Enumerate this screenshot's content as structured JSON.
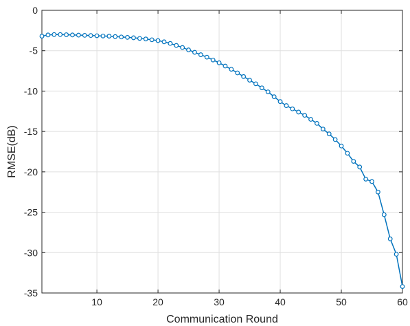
{
  "chart_data": {
    "type": "line",
    "title": "",
    "xlabel": "Communication Round",
    "ylabel": "RMSE(dB)",
    "xlim": [
      1,
      60
    ],
    "ylim": [
      -35,
      0
    ],
    "xticks": [
      10,
      20,
      30,
      40,
      50,
      60
    ],
    "yticks": [
      0,
      -5,
      -10,
      -15,
      -20,
      -25,
      -30,
      -35
    ],
    "grid": true,
    "legend": "none",
    "series": [
      {
        "color": "#0072BD",
        "marker": "circle-open",
        "x": [
          1,
          2,
          3,
          4,
          5,
          6,
          7,
          8,
          9,
          10,
          11,
          12,
          13,
          14,
          15,
          16,
          17,
          18,
          19,
          20,
          21,
          22,
          23,
          24,
          25,
          26,
          27,
          28,
          29,
          30,
          31,
          32,
          33,
          34,
          35,
          36,
          37,
          38,
          39,
          40,
          41,
          42,
          43,
          44,
          45,
          46,
          47,
          48,
          49,
          50,
          51,
          52,
          53,
          54,
          55,
          56,
          57,
          58,
          59,
          60
        ],
        "y": [
          -3.2,
          -3.05,
          -3.0,
          -3.0,
          -3.02,
          -3.05,
          -3.07,
          -3.1,
          -3.12,
          -3.15,
          -3.18,
          -3.2,
          -3.25,
          -3.3,
          -3.35,
          -3.4,
          -3.48,
          -3.55,
          -3.65,
          -3.75,
          -3.9,
          -4.1,
          -4.35,
          -4.6,
          -4.9,
          -5.2,
          -5.5,
          -5.8,
          -6.15,
          -6.5,
          -6.9,
          -7.3,
          -7.75,
          -8.2,
          -8.65,
          -9.1,
          -9.6,
          -10.1,
          -10.7,
          -11.3,
          -11.8,
          -12.2,
          -12.6,
          -13.0,
          -13.5,
          -14.0,
          -14.7,
          -15.3,
          -16.0,
          -16.8,
          -17.7,
          -18.7,
          -19.4,
          -20.9,
          -21.2,
          -22.5,
          -25.3,
          -28.3,
          -30.2,
          -34.2
        ]
      }
    ]
  }
}
